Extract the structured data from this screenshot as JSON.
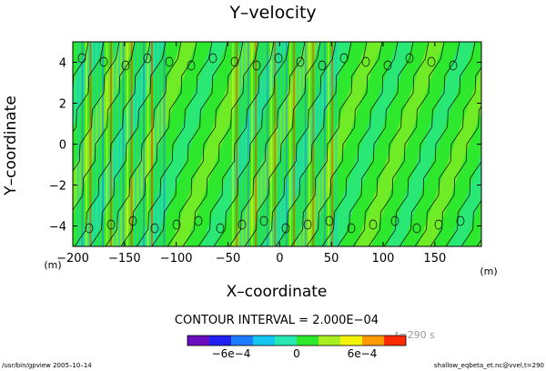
{
  "chart_data": {
    "type": "contour",
    "title": "Y–velocity",
    "xlabel": "X–coordinate",
    "ylabel": "Y–coordinate",
    "x_unit": "(m)",
    "y_unit": "(m)",
    "xlim": [
      -200,
      195
    ],
    "ylim": [
      -5,
      5
    ],
    "x_ticks": [
      -200,
      -150,
      -100,
      -50,
      0,
      50,
      100,
      150
    ],
    "x_tick_labels": [
      "−200",
      "−150",
      "−100",
      "−50",
      "0",
      "50",
      "100",
      "150"
    ],
    "y_ticks": [
      -4,
      -2,
      0,
      2,
      4
    ],
    "y_tick_labels": [
      "−4",
      "−2",
      "0",
      "2",
      "4"
    ],
    "contour_interval_text": "CONTOUR INTERVAL = 2.000E−04",
    "time_text": "t=290 s",
    "colorbar": {
      "colors": [
        "#6a0dbf",
        "#2020f0",
        "#1e7cff",
        "#12c6ef",
        "#26e8b0",
        "#2ee82e",
        "#a8ee20",
        "#f2f20a",
        "#ff9a00",
        "#ff2a00"
      ],
      "tick_values": [
        -0.0006,
        0,
        0.0006
      ],
      "tick_labels": [
        "−6e−4",
        "0",
        "6e−4"
      ]
    },
    "footer_left": "/usr/bin/gpview   2005–10–14",
    "footer_right": "shallow_eqbeta_et.nc@vvel,t=290"
  }
}
